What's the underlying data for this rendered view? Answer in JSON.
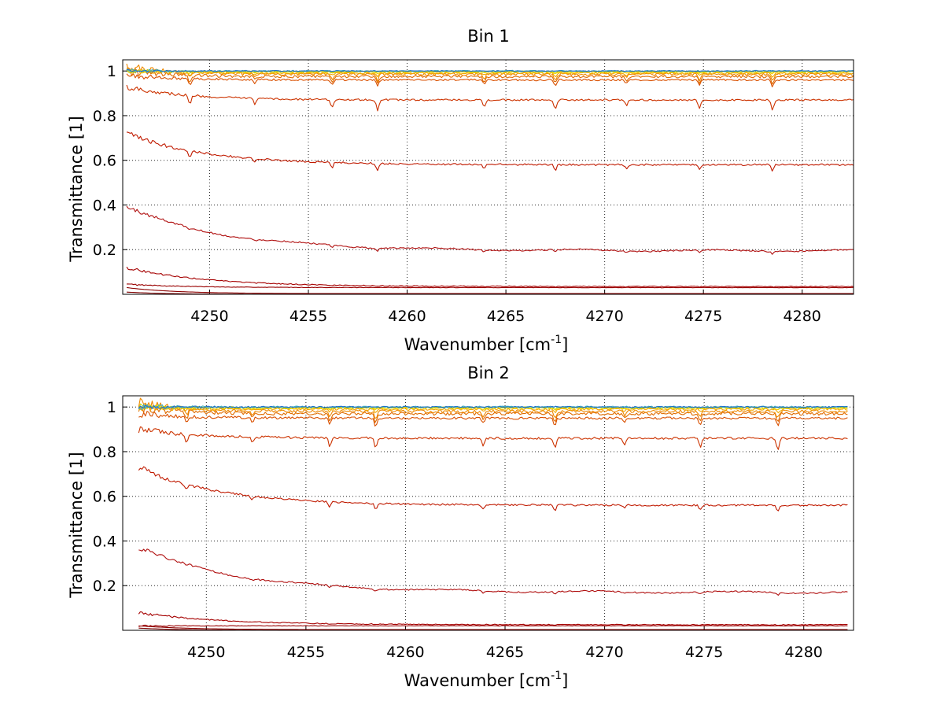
{
  "chart_data": [
    {
      "type": "line",
      "title": "Bin 1",
      "xlabel_main": "Wavenumber [cm",
      "xlabel_sup": "-1",
      "xlabel_end": "]",
      "ylabel": "Transmittance [1]",
      "xlim": [
        4245.6,
        4282.6
      ],
      "ylim": [
        0.0,
        1.05
      ],
      "xticks": [
        "4250",
        "4255",
        "4260",
        "4265",
        "4270",
        "4275",
        "4280"
      ],
      "yticks": [
        "0.2",
        "0.4",
        "0.6",
        "0.8",
        "1"
      ],
      "grid": true,
      "x_start": 4245.8,
      "x_end": 4282.6,
      "dips": [
        4249.0,
        4252.3,
        4256.2,
        4258.5,
        4263.9,
        4267.5,
        4271.1,
        4274.8,
        4278.5
      ],
      "series": [
        {
          "color": "#7f0000",
          "base": 0.0,
          "start": 0.01,
          "decay": 2.0,
          "dip": 0.0,
          "noise": 0.0
        },
        {
          "color": "#8b0000",
          "base": 0.003,
          "start": 0.03,
          "decay": 2.5,
          "dip": 0.0,
          "noise": 0.0
        },
        {
          "color": "#990000",
          "base": 0.03,
          "start": 0.045,
          "decay": 3.0,
          "dip": 0.0,
          "noise": 0.001
        },
        {
          "color": "#a50000",
          "base": 0.035,
          "start": 0.12,
          "decay": 4.0,
          "dip": 0.003,
          "noise": 0.002
        },
        {
          "color": "#b01010",
          "base": 0.195,
          "start": 0.39,
          "decay": 5.0,
          "dip": 0.012,
          "noise": 0.003
        },
        {
          "color": "#c01a00",
          "base": 0.58,
          "start": 0.72,
          "decay": 4.0,
          "dip": 0.03,
          "noise": 0.004
        },
        {
          "color": "#cc3300",
          "base": 0.87,
          "start": 0.93,
          "decay": 3.0,
          "dip": 0.05,
          "noise": 0.004
        },
        {
          "color": "#d95000",
          "base": 0.96,
          "start": 0.98,
          "decay": 2.5,
          "dip": 0.03,
          "noise": 0.004
        },
        {
          "color": "#e06c00",
          "base": 0.975,
          "start": 1.0,
          "decay": 2.0,
          "dip": 0.035,
          "noise": 0.006
        },
        {
          "color": "#ee8800",
          "base": 0.985,
          "start": 1.02,
          "decay": 2.0,
          "dip": 0.03,
          "noise": 0.006
        },
        {
          "color": "#f2a900",
          "base": 0.99,
          "start": 1.0,
          "decay": 2.0,
          "dip": 0.015,
          "noise": 0.004
        },
        {
          "color": "#f5d000",
          "base": 0.995,
          "start": 1.0,
          "decay": 2.0,
          "dip": 0.008,
          "noise": 0.003
        },
        {
          "color": "#c8d400",
          "base": 0.997,
          "start": 1.0,
          "decay": 2.0,
          "dip": 0.004,
          "noise": 0.003
        },
        {
          "color": "#3fb0c0",
          "base": 1.0,
          "start": 1.0,
          "decay": 2.0,
          "dip": 0.0,
          "noise": 0.003
        },
        {
          "color": "#1e6fd0",
          "base": 1.0,
          "start": 1.0,
          "decay": 2.0,
          "dip": 0.0,
          "noise": 0.002
        }
      ]
    },
    {
      "type": "line",
      "title": "Bin 2",
      "xlabel_main": "Wavenumber [cm",
      "xlabel_sup": "-1",
      "xlabel_end": "]",
      "ylabel": "Transmittance [1]",
      "xlim": [
        4245.8,
        4282.5
      ],
      "ylim": [
        0.0,
        1.05
      ],
      "xticks": [
        "4250",
        "4255",
        "4260",
        "4265",
        "4270",
        "4275",
        "4280"
      ],
      "yticks": [
        "0.2",
        "0.4",
        "0.6",
        "0.8",
        "1"
      ],
      "grid": true,
      "x_start": 4246.6,
      "x_end": 4282.2,
      "dips": [
        4249.0,
        4252.3,
        4256.2,
        4258.5,
        4263.9,
        4267.5,
        4271.0,
        4274.8,
        4278.7
      ],
      "series": [
        {
          "color": "#7f0000",
          "base": 0.0,
          "start": 0.01,
          "decay": 2.0,
          "dip": 0.0,
          "noise": 0.0
        },
        {
          "color": "#8b0000",
          "base": 0.003,
          "start": 0.02,
          "decay": 2.5,
          "dip": 0.0,
          "noise": 0.0
        },
        {
          "color": "#990000",
          "base": 0.02,
          "start": 0.02,
          "decay": 3.0,
          "dip": 0.0,
          "noise": 0.001
        },
        {
          "color": "#a50000",
          "base": 0.025,
          "start": 0.08,
          "decay": 4.0,
          "dip": 0.002,
          "noise": 0.002
        },
        {
          "color": "#b01010",
          "base": 0.17,
          "start": 0.37,
          "decay": 5.0,
          "dip": 0.012,
          "noise": 0.003
        },
        {
          "color": "#c01a00",
          "base": 0.56,
          "start": 0.73,
          "decay": 4.0,
          "dip": 0.03,
          "noise": 0.004
        },
        {
          "color": "#cc3300",
          "base": 0.86,
          "start": 0.9,
          "decay": 3.0,
          "dip": 0.05,
          "noise": 0.005
        },
        {
          "color": "#d95000",
          "base": 0.95,
          "start": 0.97,
          "decay": 2.5,
          "dip": 0.035,
          "noise": 0.005
        },
        {
          "color": "#e06c00",
          "base": 0.97,
          "start": 1.0,
          "decay": 2.0,
          "dip": 0.04,
          "noise": 0.007
        },
        {
          "color": "#ee8800",
          "base": 0.98,
          "start": 1.02,
          "decay": 2.0,
          "dip": 0.03,
          "noise": 0.007
        },
        {
          "color": "#f2a900",
          "base": 0.99,
          "start": 1.0,
          "decay": 2.0,
          "dip": 0.015,
          "noise": 0.005
        },
        {
          "color": "#f5d000",
          "base": 0.995,
          "start": 1.0,
          "decay": 2.0,
          "dip": 0.008,
          "noise": 0.004
        },
        {
          "color": "#c8d400",
          "base": 0.997,
          "start": 1.0,
          "decay": 2.0,
          "dip": 0.004,
          "noise": 0.004
        },
        {
          "color": "#3fb0c0",
          "base": 1.0,
          "start": 1.0,
          "decay": 2.0,
          "dip": 0.0,
          "noise": 0.004
        },
        {
          "color": "#1e6fd0",
          "base": 1.0,
          "start": 1.0,
          "decay": 2.0,
          "dip": 0.0,
          "noise": 0.003
        }
      ]
    }
  ]
}
